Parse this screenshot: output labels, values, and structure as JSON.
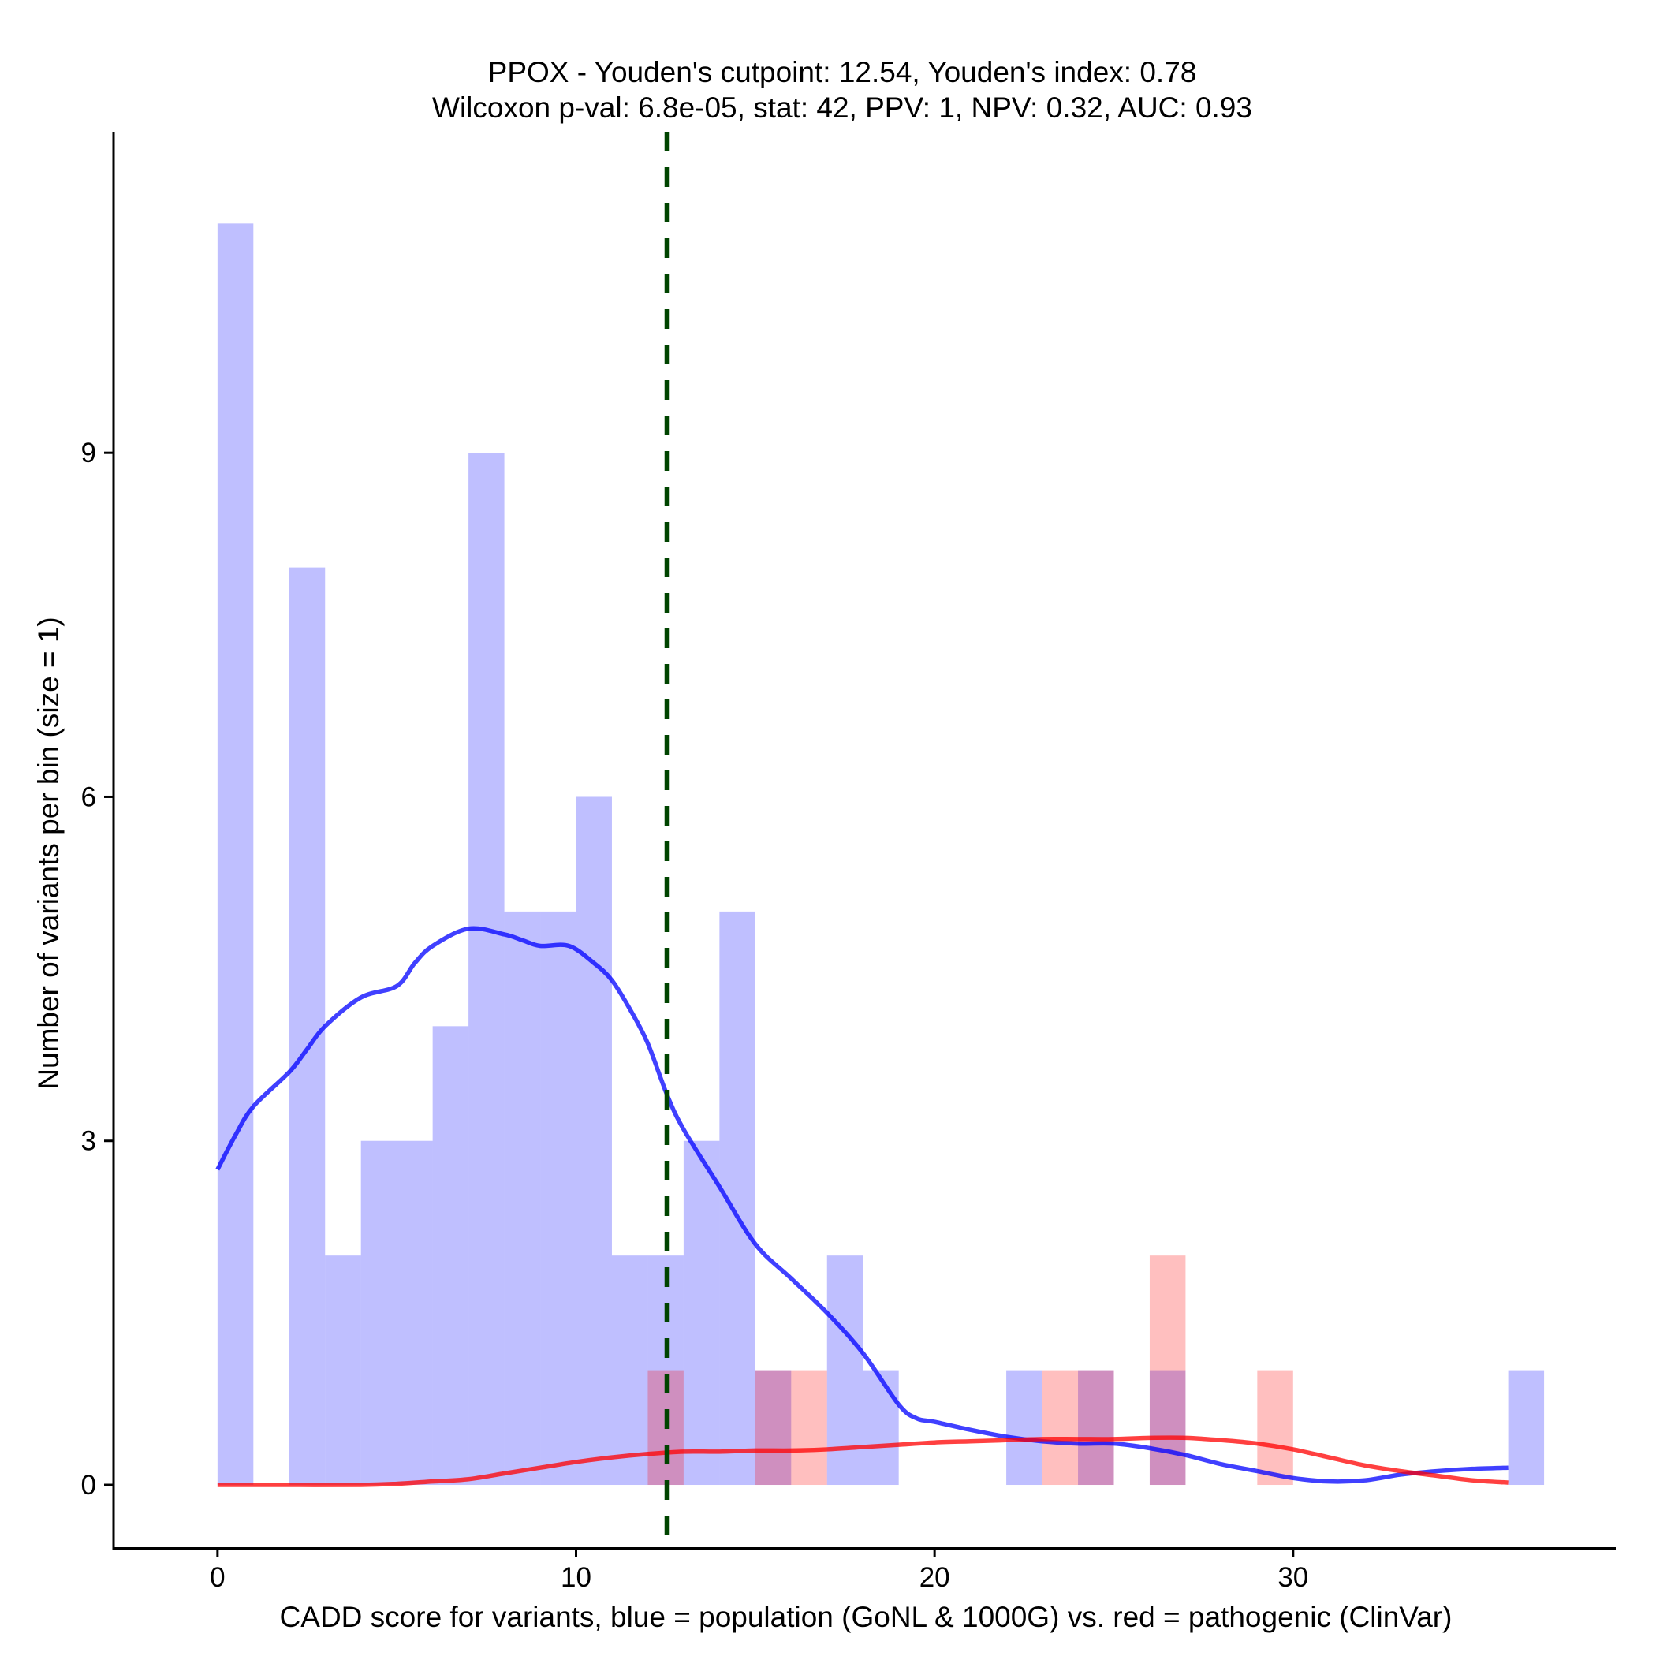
{
  "chart_data": {
    "type": "histogram",
    "title": "PPOX - Youden's cutpoint: 12.54, Youden's index: 0.78",
    "subtitle": "Wilcoxon p-val: 6.8e-05, stat: 42, PPV: 1, NPV: 0.32, AUC: 0.93",
    "xlabel": "CADD score for variants, blue = population (GoNL & 1000G) vs. red = pathogenic (ClinVar)",
    "ylabel": "Number of variants per bin (size = 1)",
    "xlim": [
      -2.9,
      39
    ],
    "ylim": [
      -0.55,
      11.8
    ],
    "x_ticks": [
      0,
      10,
      20,
      30
    ],
    "x_tick_labels": [
      "0",
      "10",
      "20",
      "30"
    ],
    "y_ticks": [
      0,
      3,
      6,
      9
    ],
    "y_tick_labels": [
      "0",
      "3",
      "6",
      "9"
    ],
    "bin_width": 1,
    "cutpoint": 12.54,
    "series": [
      {
        "name": "population (GoNL & 1000G)",
        "color": "#0000ff",
        "fill_opacity": 0.25,
        "bins": [
          {
            "x": 0,
            "count": 11
          },
          {
            "x": 2,
            "count": 8
          },
          {
            "x": 3,
            "count": 2
          },
          {
            "x": 4,
            "count": 3
          },
          {
            "x": 5,
            "count": 3
          },
          {
            "x": 6,
            "count": 4
          },
          {
            "x": 7,
            "count": 9
          },
          {
            "x": 8,
            "count": 5
          },
          {
            "x": 9,
            "count": 5
          },
          {
            "x": 10,
            "count": 6
          },
          {
            "x": 11,
            "count": 2
          },
          {
            "x": 12,
            "count": 2
          },
          {
            "x": 13,
            "count": 3
          },
          {
            "x": 14,
            "count": 5
          },
          {
            "x": 15,
            "count": 1
          },
          {
            "x": 17,
            "count": 2
          },
          {
            "x": 18,
            "count": 1
          },
          {
            "x": 22,
            "count": 1
          },
          {
            "x": 24,
            "count": 1
          },
          {
            "x": 26,
            "count": 1
          },
          {
            "x": 36,
            "count": 1
          }
        ],
        "density_line": [
          [
            0,
            2.75
          ],
          [
            0.5,
            3.05
          ],
          [
            1,
            3.3
          ],
          [
            2,
            3.6
          ],
          [
            2.5,
            3.8
          ],
          [
            3,
            4.0
          ],
          [
            4,
            4.25
          ],
          [
            5,
            4.35
          ],
          [
            5.5,
            4.55
          ],
          [
            6,
            4.7
          ],
          [
            7,
            4.85
          ],
          [
            8,
            4.8
          ],
          [
            8.5,
            4.75
          ],
          [
            9,
            4.7
          ],
          [
            9.8,
            4.7
          ],
          [
            10.5,
            4.55
          ],
          [
            11,
            4.4
          ],
          [
            11.5,
            4.15
          ],
          [
            12,
            3.85
          ],
          [
            12.54,
            3.4
          ],
          [
            13,
            3.1
          ],
          [
            14,
            2.6
          ],
          [
            15,
            2.1
          ],
          [
            16,
            1.8
          ],
          [
            17,
            1.5
          ],
          [
            18,
            1.15
          ],
          [
            19,
            0.7
          ],
          [
            19.5,
            0.58
          ],
          [
            20,
            0.55
          ],
          [
            21,
            0.48
          ],
          [
            22,
            0.42
          ],
          [
            23,
            0.38
          ],
          [
            24,
            0.36
          ],
          [
            25,
            0.36
          ],
          [
            26,
            0.32
          ],
          [
            27,
            0.26
          ],
          [
            28,
            0.18
          ],
          [
            29,
            0.12
          ],
          [
            30,
            0.06
          ],
          [
            31,
            0.03
          ],
          [
            32,
            0.04
          ],
          [
            33,
            0.09
          ],
          [
            34,
            0.12
          ],
          [
            35,
            0.14
          ],
          [
            36,
            0.15
          ]
        ]
      },
      {
        "name": "pathogenic (ClinVar)",
        "color": "#ff0000",
        "fill_opacity": 0.25,
        "bins": [
          {
            "x": 12,
            "count": 1
          },
          {
            "x": 15,
            "count": 1
          },
          {
            "x": 16,
            "count": 1
          },
          {
            "x": 23,
            "count": 1
          },
          {
            "x": 24,
            "count": 1
          },
          {
            "x": 26,
            "count": 2
          },
          {
            "x": 29,
            "count": 1
          }
        ],
        "density_line": [
          [
            0,
            0.0
          ],
          [
            2,
            0.0
          ],
          [
            4,
            0.0
          ],
          [
            5,
            0.01
          ],
          [
            6,
            0.03
          ],
          [
            7,
            0.05
          ],
          [
            8,
            0.1
          ],
          [
            9,
            0.15
          ],
          [
            10,
            0.2
          ],
          [
            11,
            0.24
          ],
          [
            12,
            0.27
          ],
          [
            13,
            0.29
          ],
          [
            14,
            0.29
          ],
          [
            15,
            0.3
          ],
          [
            16,
            0.3
          ],
          [
            17,
            0.31
          ],
          [
            18,
            0.33
          ],
          [
            19,
            0.35
          ],
          [
            20,
            0.37
          ],
          [
            21,
            0.38
          ],
          [
            22,
            0.39
          ],
          [
            23,
            0.4
          ],
          [
            24,
            0.4
          ],
          [
            25,
            0.4
          ],
          [
            26,
            0.41
          ],
          [
            27,
            0.41
          ],
          [
            28,
            0.39
          ],
          [
            29,
            0.36
          ],
          [
            30,
            0.31
          ],
          [
            31,
            0.24
          ],
          [
            32,
            0.17
          ],
          [
            33,
            0.12
          ],
          [
            34,
            0.08
          ],
          [
            35,
            0.04
          ],
          [
            36,
            0.02
          ]
        ]
      }
    ]
  }
}
